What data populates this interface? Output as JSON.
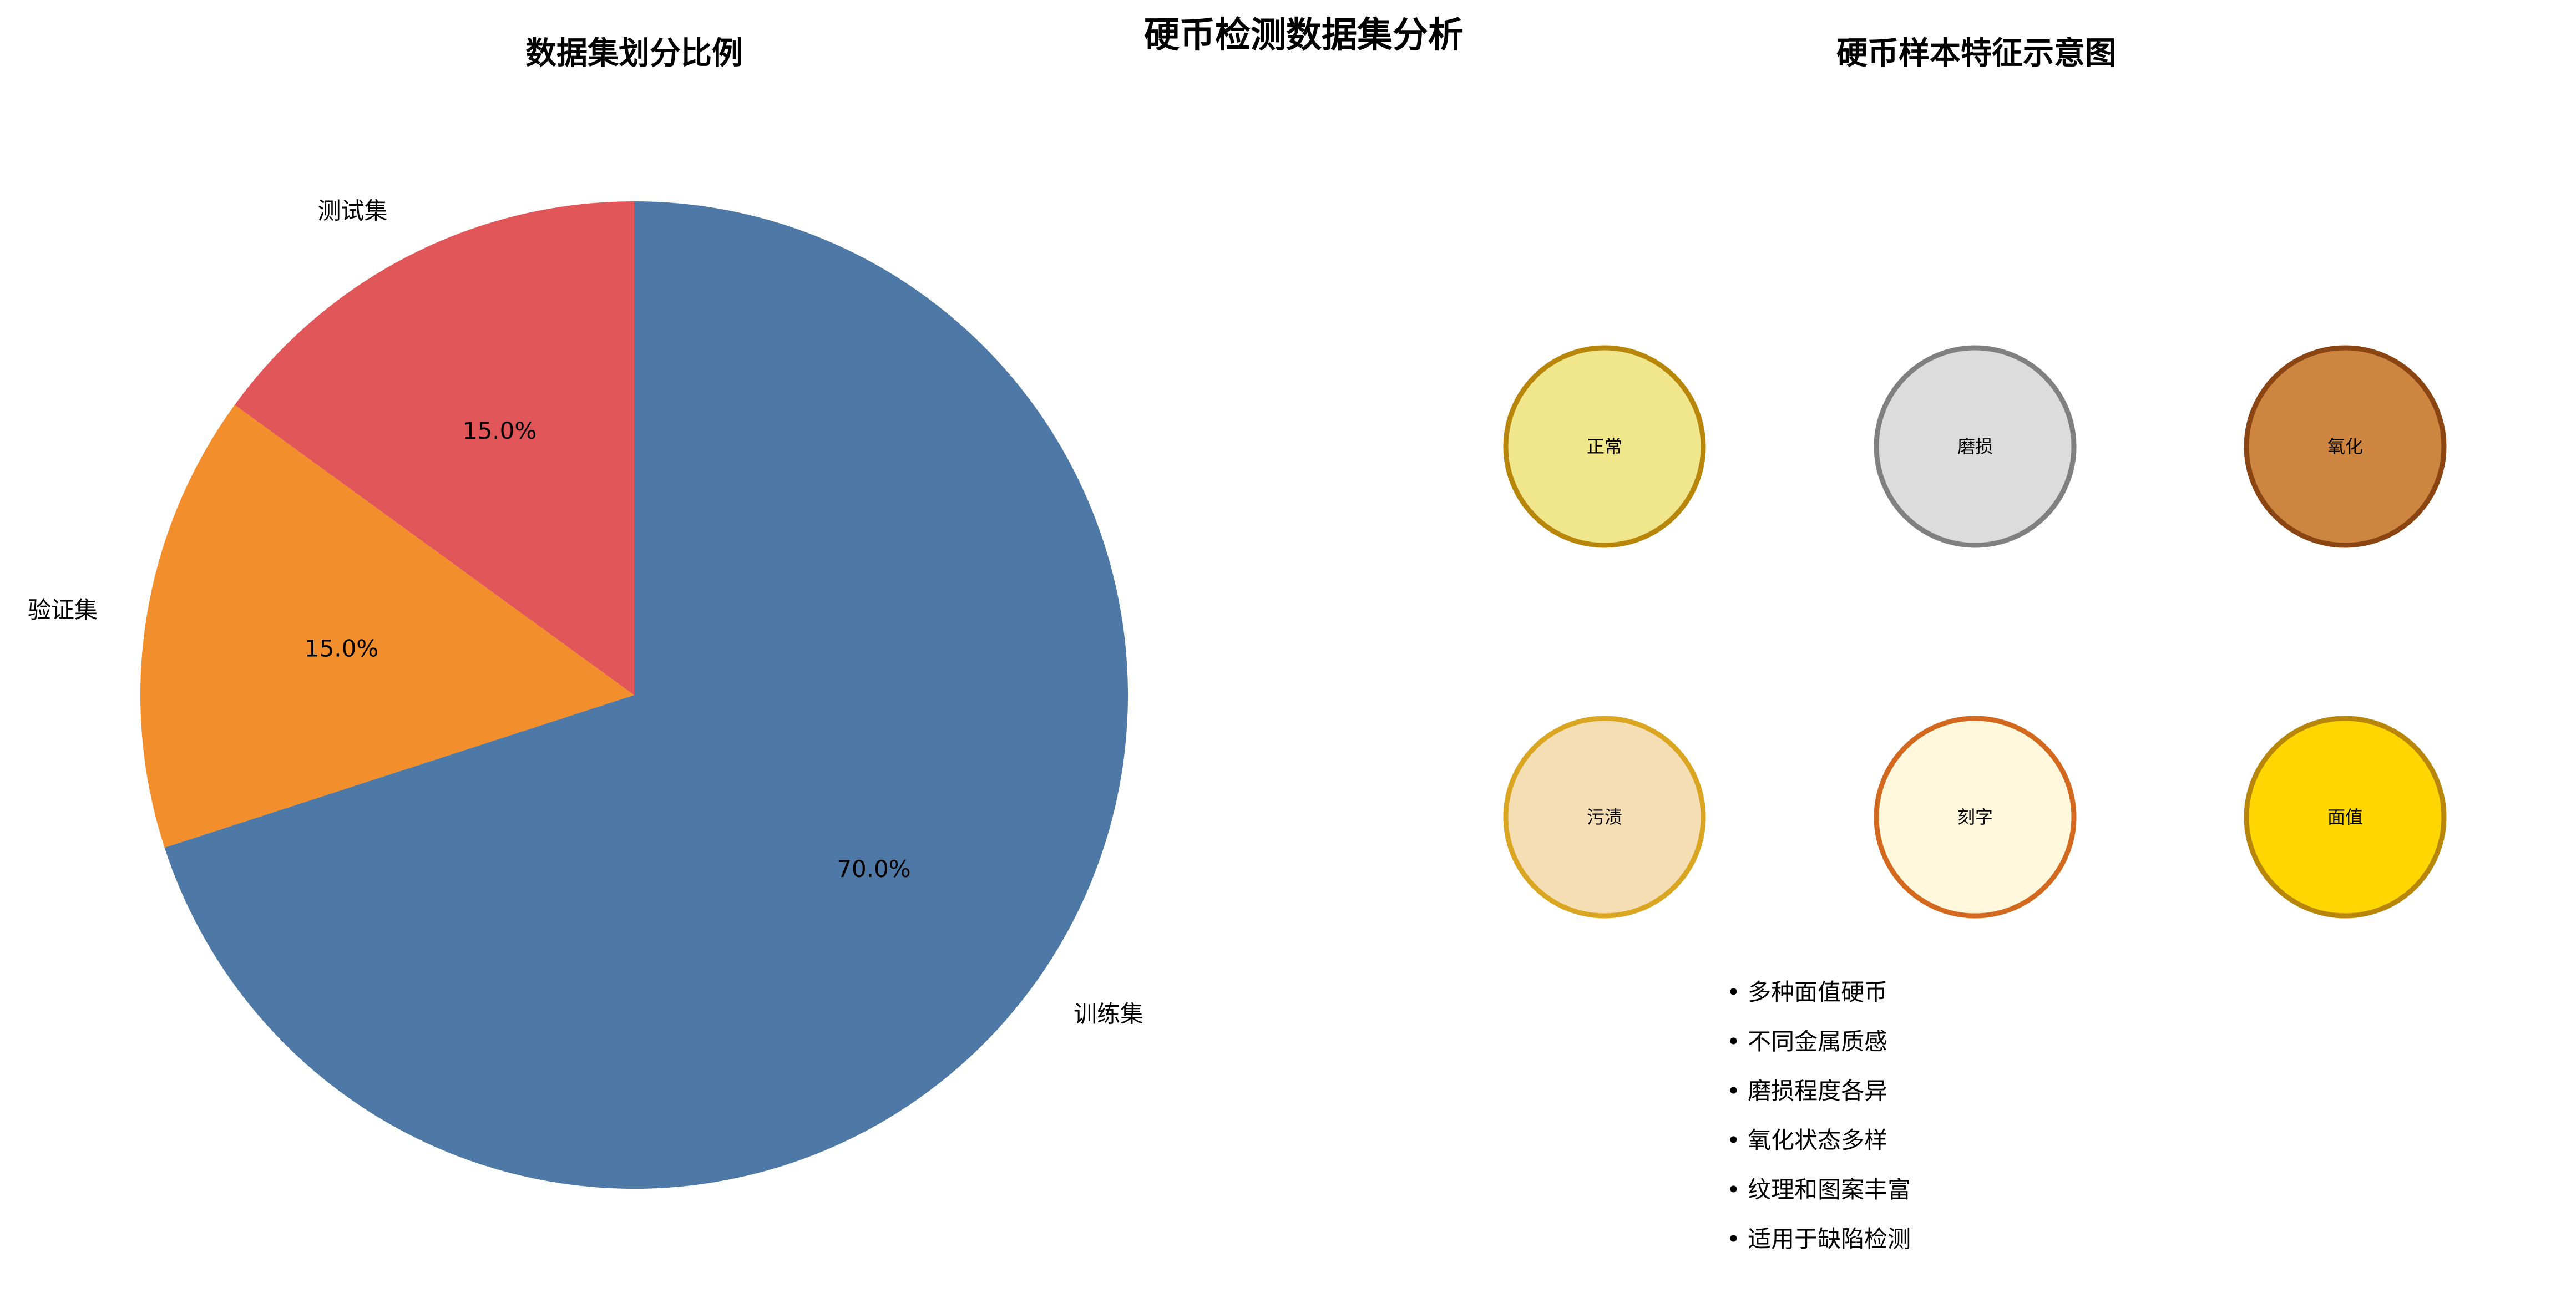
{
  "figure_title": "硬币检测数据集分析",
  "chart_data": [
    {
      "type": "pie",
      "title": "数据集划分比例",
      "slices": [
        {
          "label": "训练集",
          "value": 70.0,
          "pct_label": "70.0%",
          "color": "#4e79a7"
        },
        {
          "label": "验证集",
          "value": 15.0,
          "pct_label": "15.0%",
          "color": "#f28e2b"
        },
        {
          "label": "测试集",
          "value": 15.0,
          "pct_label": "15.0%",
          "color": "#e15759"
        }
      ],
      "start_angle_deg": 90,
      "direction": "clockwise"
    }
  ],
  "features": {
    "title": "硬币样本特征示意图",
    "coins": [
      {
        "label": "正常",
        "fill": "#f0e68c",
        "stroke": "#b8860b"
      },
      {
        "label": "磨损",
        "fill": "#dcdcdc",
        "stroke": "#808080"
      },
      {
        "label": "氧化",
        "fill": "#cd853f",
        "stroke": "#8b4513"
      },
      {
        "label": "污渍",
        "fill": "#f5deb3",
        "stroke": "#daa520"
      },
      {
        "label": "刻字",
        "fill": "#fff8dc",
        "stroke": "#d2691e"
      },
      {
        "label": "面值",
        "fill": "#ffd700",
        "stroke": "#b8860b"
      }
    ],
    "bullets": [
      "• 多种面值硬币",
      "• 不同金属质感",
      "• 磨损程度各异",
      "• 氧化状态多样",
      "• 纹理和图案丰富",
      "• 适用于缺陷检测"
    ]
  }
}
